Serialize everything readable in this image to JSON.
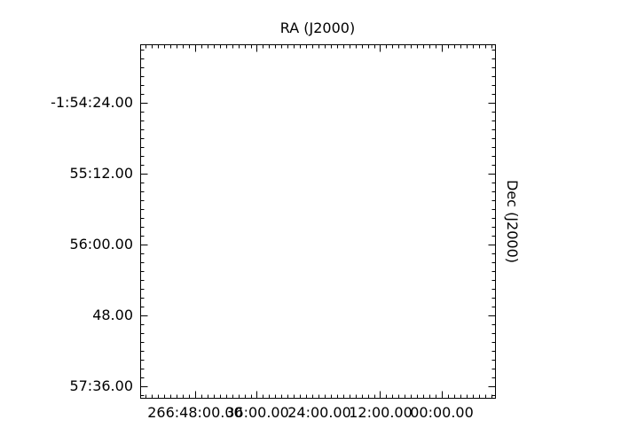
{
  "chart_data": {
    "type": "scatter",
    "title": "RA (J2000)",
    "xlabel": "",
    "ylabel": "Dec (J2000)",
    "x_tick_labels": [
      "266:48:00.00",
      "36:00.00",
      "24:00.00",
      "12:00.00",
      "00:00.00"
    ],
    "y_tick_labels": [
      "-1:54:24.00",
      "55:12.00",
      "56:00.00",
      "48.00",
      "57:36.00"
    ],
    "series": [],
    "grid": false,
    "legend": "none",
    "colors": {
      "frame": "#000000",
      "background": "#ffffff"
    }
  }
}
